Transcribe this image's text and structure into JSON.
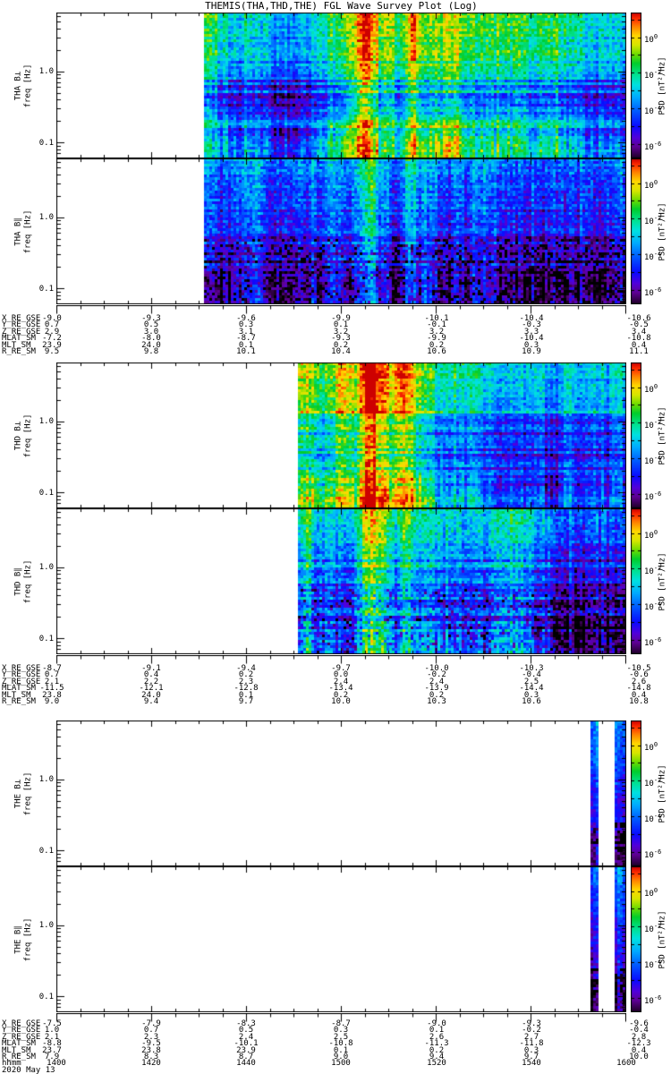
{
  "chart_data": {
    "type": "heatmap",
    "title": "THEMIS(THA,THD,THE) FGL Wave Survey Plot (Log)",
    "x_axis": {
      "label": "hhmm",
      "date": "2020 May 13",
      "tick_labels": [
        "1400",
        "1420",
        "1440",
        "1500",
        "1520",
        "1540",
        "1600"
      ],
      "range": [
        "14:00",
        "16:00"
      ],
      "minor_tick_minutes": 5
    },
    "y_axis": {
      "label": "freq [Hz]",
      "scale": "log",
      "tick_labels": [
        "1.0",
        "0.1"
      ],
      "range_hz": [
        0.06,
        6.7
      ]
    },
    "colorbar": {
      "label": "PSD [nT²/Hz]",
      "scale": "log",
      "base": "10",
      "ticks": [
        {
          "exp": "0",
          "frac": 0.17
        },
        {
          "exp": "-2",
          "frac": 0.415
        },
        {
          "exp": "-4",
          "frac": 0.66
        },
        {
          "exp": "-6",
          "frac": 0.905
        }
      ],
      "colormap": "rainbow",
      "top_color": "#cd0000",
      "bottom_color": "#000000"
    },
    "panels": [
      {
        "name": "THA B⊥",
        "y_label": "freq [Hz]",
        "coverage": "data ~1431–1600, strong wave band ~1512–1520",
        "render": {
          "seed": 11,
          "start": 0.26,
          "noise": 0.75,
          "colvar": 0.6,
          "hstripe": 1.15,
          "edge": 1.3,
          "profile": [
            [
              0,
              -2.15
            ],
            [
              0.3,
              -2.6
            ],
            [
              0.45,
              -3.9
            ],
            [
              0.6,
              -4.3
            ],
            [
              0.72,
              -3.6
            ],
            [
              0.85,
              -3.0
            ],
            [
              1,
              -2.7
            ]
          ],
          "bands": [
            {
              "x": 0.545,
              "w": 0.022,
              "a": 3.4
            },
            {
              "x": 0.585,
              "w": 0.012,
              "a": 2.0
            },
            {
              "x": 0.625,
              "w": 0.014,
              "a": 2.2
            },
            {
              "x": 0.78,
              "w": 0.18,
              "a": 0.7
            }
          ]
        }
      },
      {
        "name": "THA B∥",
        "y_label": "freq [Hz]",
        "coverage": "data ~1431–1600, weaker than B⊥, dark low-PSD patches at low freq",
        "render": {
          "seed": 22,
          "start": 0.26,
          "noise": 0.85,
          "colvar": 0.55,
          "hstripe": 0.9,
          "edge": 0.9,
          "profile": [
            [
              0,
              -3.0
            ],
            [
              0.3,
              -3.8
            ],
            [
              0.5,
              -4.6
            ],
            [
              0.7,
              -5.0
            ],
            [
              0.85,
              -4.9
            ],
            [
              1,
              -4.5
            ]
          ],
          "bands": [
            {
              "x": 0.55,
              "w": 0.02,
              "a": 2.9
            },
            {
              "x": 0.62,
              "w": 0.012,
              "a": 1.7
            }
          ],
          "lowband": {
            "y0": 0.55,
            "y1": 1.0,
            "p": 0.16,
            "d": 1.9
          }
        }
      },
      {
        "name": "THD B⊥",
        "y_label": "freq [Hz]",
        "coverage": "data ~1451–1600, intense yellow band ~1512–1525",
        "render": {
          "seed": 33,
          "start": 0.424,
          "noise": 0.75,
          "colvar": 0.65,
          "hstripe": 1.05,
          "edge": 1.0,
          "profile": [
            [
              0,
              -2.2
            ],
            [
              0.35,
              -2.8
            ],
            [
              0.5,
              -3.9
            ],
            [
              0.65,
              -4.2
            ],
            [
              0.8,
              -3.4
            ],
            [
              1,
              -2.9
            ]
          ],
          "bands": [
            {
              "x": 0.5,
              "w": 0.012,
              "a": 2.0
            },
            {
              "x": 0.553,
              "w": 0.03,
              "a": 3.7
            },
            {
              "x": 0.61,
              "w": 0.018,
              "a": 2.6
            }
          ]
        }
      },
      {
        "name": "THD B∥",
        "y_label": "freq [Hz]",
        "coverage": "data ~1451–1600, weaker than B⊥",
        "render": {
          "seed": 44,
          "start": 0.424,
          "noise": 0.85,
          "colvar": 0.55,
          "hstripe": 0.95,
          "edge": 0.7,
          "profile": [
            [
              0,
              -3.1
            ],
            [
              0.35,
              -4.0
            ],
            [
              0.55,
              -4.8
            ],
            [
              0.75,
              -5.1
            ],
            [
              1,
              -4.6
            ]
          ],
          "bands": [
            {
              "x": 0.553,
              "w": 0.025,
              "a": 3.0
            },
            {
              "x": 0.61,
              "w": 0.015,
              "a": 1.9
            }
          ],
          "lowband": {
            "y0": 0.55,
            "y1": 1.0,
            "p": 0.14,
            "d": 1.8
          }
        }
      },
      {
        "name": "THE B⊥",
        "y_label": "freq [Hz]",
        "coverage": "only two short data strips near ~1553 and ~1558–1600",
        "render": {
          "seed": 55,
          "strips": [
            [
              0.936,
              0.95
            ],
            [
              0.978,
              1.0
            ]
          ],
          "noise": 0.6,
          "colvar": 0.35,
          "hstripe": 0.45,
          "profile": [
            [
              0,
              -2.9
            ],
            [
              0.3,
              -3.6
            ],
            [
              0.55,
              -4.2
            ],
            [
              0.8,
              -4.7
            ],
            [
              1,
              -5.0
            ]
          ],
          "lowband": {
            "y0": 0.7,
            "y1": 0.9,
            "p": 0.35,
            "d": 2.1
          }
        }
      },
      {
        "name": "THE B∥",
        "y_label": "freq [Hz]",
        "coverage": "only two short data strips near ~1553 and ~1558–1600",
        "render": {
          "seed": 66,
          "strips": [
            [
              0.936,
              0.95
            ],
            [
              0.978,
              1.0
            ]
          ],
          "noise": 0.6,
          "colvar": 0.35,
          "hstripe": 0.45,
          "profile": [
            [
              0,
              -3.1
            ],
            [
              0.3,
              -3.8
            ],
            [
              0.55,
              -4.4
            ],
            [
              0.8,
              -4.9
            ],
            [
              1,
              -5.2
            ]
          ],
          "lowband": {
            "y0": 0.7,
            "y1": 0.92,
            "p": 0.3,
            "d": 2.0
          }
        }
      }
    ],
    "ephemeris": [
      {
        "group": "THA",
        "rows": [
          {
            "label": "X_RE_GSE",
            "values": [
              "-9.0",
              "-9.3",
              "-9.6",
              "-9.9",
              "-10.1",
              "-10.4",
              "-10.6"
            ]
          },
          {
            "label": "Y_RE_GSE",
            "values": [
              "0.7",
              "0.5",
              "0.3",
              "0.1",
              "-0.1",
              "-0.3",
              "-0.5"
            ]
          },
          {
            "label": "Z_RE_GSE",
            "values": [
              "2.9",
              "3.0",
              "3.1",
              "3.2",
              "3.2",
              "3.3",
              "3.4"
            ]
          },
          {
            "label": "MLAT_SM",
            "values": [
              "-7.2",
              "-8.0",
              "-8.7",
              "-9.3",
              "-9.9",
              "-10.4",
              "-10.8"
            ]
          },
          {
            "label": "MLT_SM",
            "values": [
              "23.9",
              "24.0",
              "0.1",
              "0.2",
              "0.2",
              "0.3",
              "0.4"
            ]
          },
          {
            "label": "R_RE_SM",
            "values": [
              "9.5",
              "9.8",
              "10.1",
              "10.4",
              "10.6",
              "10.9",
              "11.1"
            ]
          }
        ]
      },
      {
        "group": "THD",
        "rows": [
          {
            "label": "X_RE_GSE",
            "values": [
              "-8.7",
              "-9.1",
              "-9.4",
              "-9.7",
              "-10.0",
              "-10.3",
              "-10.5"
            ]
          },
          {
            "label": "Y_RE_GSE",
            "values": [
              "0.7",
              "0.4",
              "0.2",
              "0.0",
              "-0.2",
              "-0.4",
              "-0.6"
            ]
          },
          {
            "label": "Z_RE_GSE",
            "values": [
              "2.1",
              "2.2",
              "2.3",
              "2.4",
              "2.4",
              "2.5",
              "2.6"
            ]
          },
          {
            "label": "MLAT_SM",
            "values": [
              "-11.5",
              "-12.1",
              "-12.8",
              "-13.4",
              "-13.9",
              "-14.4",
              "-14.8"
            ]
          },
          {
            "label": "MLT_SM",
            "values": [
              "23.8",
              "24.0",
              "0.1",
              "0.2",
              "0.2",
              "0.3",
              "0.4"
            ]
          },
          {
            "label": "R_RE_SM",
            "values": [
              "9.0",
              "9.4",
              "9.7",
              "10.0",
              "10.3",
              "10.6",
              "10.8"
            ]
          }
        ]
      },
      {
        "group": "THE",
        "rows": [
          {
            "label": "X_RE_GSE",
            "values": [
              "-7.5",
              "-7.9",
              "-8.3",
              "-8.7",
              "-9.0",
              "-9.3",
              "-9.6"
            ]
          },
          {
            "label": "Y_RE_GSE",
            "values": [
              "1.0",
              "0.7",
              "0.5",
              "0.3",
              "0.1",
              "-0.2",
              "-0.4"
            ]
          },
          {
            "label": "Z_RE_GSE",
            "values": [
              "2.1",
              "2.3",
              "2.4",
              "2.5",
              "2.6",
              "2.7",
              "2.8"
            ]
          },
          {
            "label": "MLAT_SM",
            "values": [
              "-8.8",
              "-9.5",
              "-10.1",
              "-10.8",
              "-11.3",
              "-11.8",
              "-12.3"
            ]
          },
          {
            "label": "MLT_SM",
            "values": [
              "23.7",
              "23.8",
              "23.9",
              "0.1",
              "0.2",
              "0.3",
              "0.4"
            ]
          },
          {
            "label": "R_RE_SM",
            "values": [
              "7.9",
              "8.3",
              "8.7",
              "9.0",
              "9.4",
              "9.7",
              "10.0"
            ]
          }
        ]
      }
    ]
  }
}
